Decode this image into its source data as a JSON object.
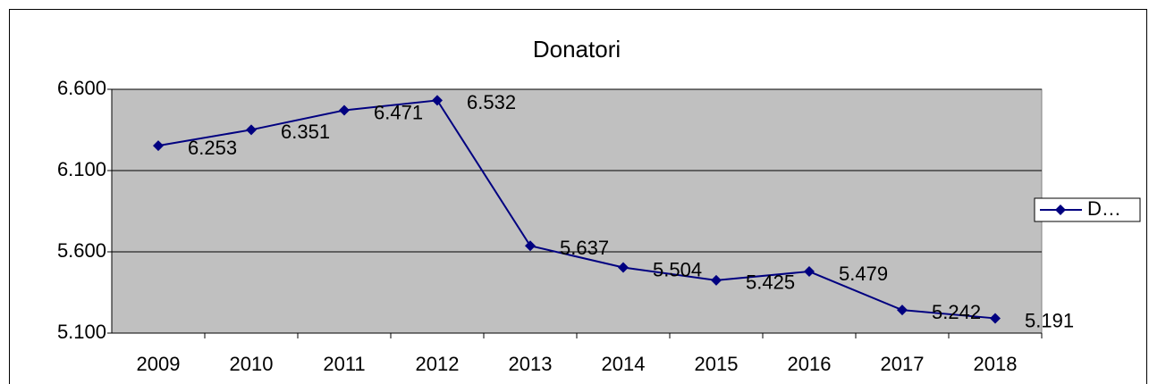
{
  "chart_data": {
    "type": "line",
    "title": "Donatori",
    "categories": [
      "2009",
      "2010",
      "2011",
      "2012",
      "2013",
      "2014",
      "2015",
      "2016",
      "2017",
      "2018"
    ],
    "series": [
      {
        "name": "D…",
        "color": "#000080",
        "values": [
          6253,
          6351,
          6471,
          6532,
          5637,
          5504,
          5425,
          5479,
          5242,
          5191
        ],
        "value_labels": [
          "6.253",
          "6.351",
          "6.471",
          "6.532",
          "5.637",
          "5.504",
          "5.425",
          "5.479",
          "5.242",
          "5.191"
        ]
      }
    ],
    "ylim": [
      5100,
      6600
    ],
    "yticks": [
      {
        "value": 5100,
        "label": "5.100"
      },
      {
        "value": 5600,
        "label": "5.600"
      },
      {
        "value": 6100,
        "label": "6.100"
      },
      {
        "value": 6600,
        "label": "6.600"
      }
    ],
    "grid": true,
    "legend": "right"
  }
}
